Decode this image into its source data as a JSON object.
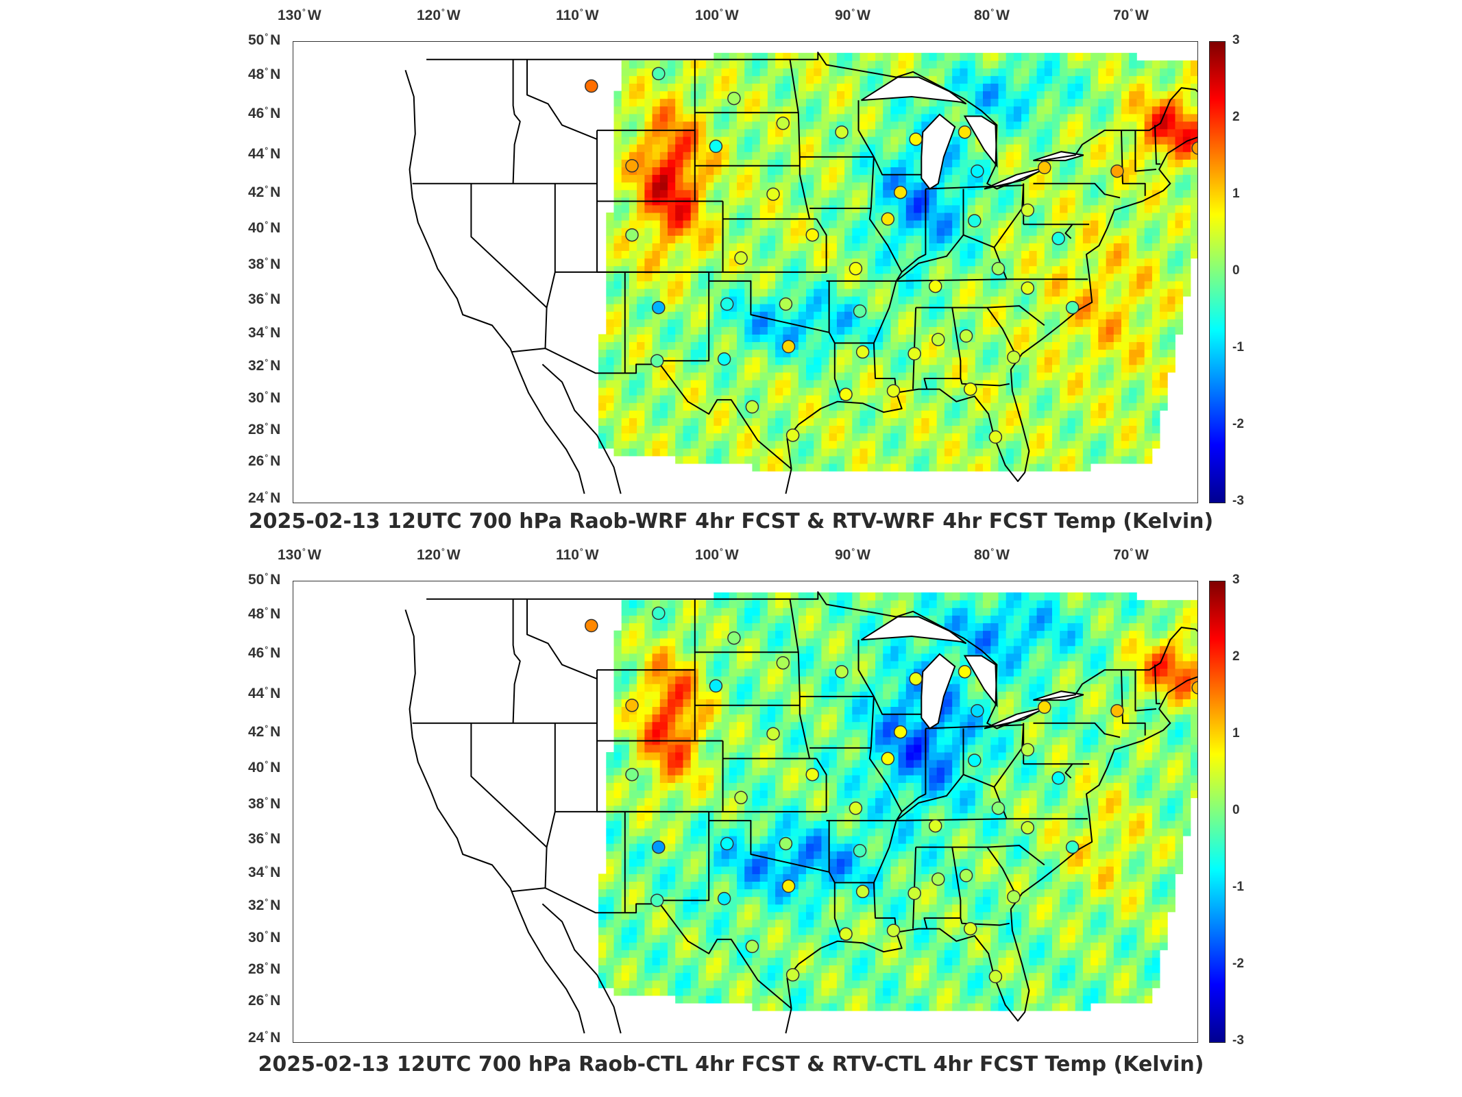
{
  "panels": [
    {
      "title": "2025-02-13 12UTC 700 hPa Raob-WRF 4hr FCST & RTV-WRF 4hr FCST Temp (Kelvin)",
      "colorbar_ticks": [
        "3",
        "2",
        "1",
        "0",
        "-1",
        "-2",
        "-3"
      ]
    },
    {
      "title": "2025-02-13 12UTC 700 hPa Raob-CTL 4hr FCST & RTV-CTL 4hr FCST Temp (Kelvin)",
      "colorbar_ticks": [
        "3",
        "2",
        "1",
        "0",
        "-1",
        "-2",
        "-3"
      ]
    }
  ],
  "axes": {
    "lon_ticks": [
      {
        "deg": "130",
        "hemi": "W"
      },
      {
        "deg": "120",
        "hemi": "W"
      },
      {
        "deg": "110",
        "hemi": "W"
      },
      {
        "deg": "100",
        "hemi": "W"
      },
      {
        "deg": "90",
        "hemi": "W"
      },
      {
        "deg": "80",
        "hemi": "W"
      },
      {
        "deg": "70",
        "hemi": "W"
      }
    ],
    "lat_ticks": [
      {
        "deg": "50",
        "hemi": "N"
      },
      {
        "deg": "48",
        "hemi": "N"
      },
      {
        "deg": "46",
        "hemi": "N"
      },
      {
        "deg": "44",
        "hemi": "N"
      },
      {
        "deg": "42",
        "hemi": "N"
      },
      {
        "deg": "40",
        "hemi": "N"
      },
      {
        "deg": "38",
        "hemi": "N"
      },
      {
        "deg": "36",
        "hemi": "N"
      },
      {
        "deg": "34",
        "hemi": "N"
      },
      {
        "deg": "32",
        "hemi": "N"
      },
      {
        "deg": "30",
        "hemi": "N"
      },
      {
        "deg": "28",
        "hemi": "N"
      },
      {
        "deg": "26",
        "hemi": "N"
      },
      {
        "deg": "24",
        "hemi": "N"
      }
    ]
  },
  "colormap": {
    "name": "jet",
    "range": [
      -3,
      3
    ],
    "stops": [
      "#00008f",
      "#0000ff",
      "#0080ff",
      "#00ffff",
      "#80ff80",
      "#ffff00",
      "#ff8000",
      "#ff0000",
      "#800000"
    ]
  },
  "map": {
    "lon_range": [
      -131,
      -65
    ],
    "lat_range": [
      24,
      50
    ],
    "outline_color": "#000000"
  }
}
